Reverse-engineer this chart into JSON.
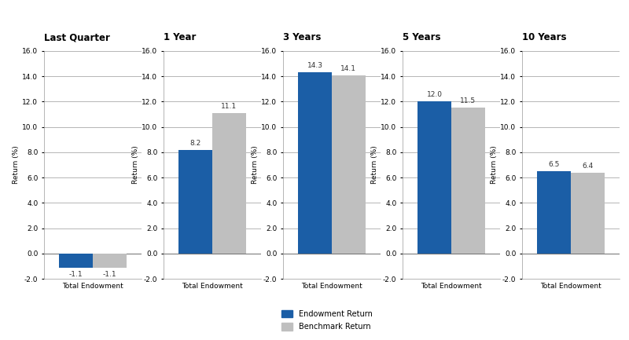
{
  "periods": [
    "Last Quarter",
    "1 Year",
    "3 Years",
    "5 Years",
    "10 Years"
  ],
  "endowment_returns": [
    -1.1,
    8.2,
    14.3,
    12.0,
    6.5
  ],
  "benchmark_returns": [
    -1.1,
    11.1,
    14.1,
    11.5,
    6.4
  ],
  "endowment_color": "#1B5EA6",
  "benchmark_color": "#BFBFBF",
  "bar_width": 0.38,
  "ylim": [
    -2.0,
    16.0
  ],
  "yticks": [
    0.0,
    2.0,
    4.0,
    6.0,
    8.0,
    10.0,
    12.0,
    14.0,
    16.0
  ],
  "ytick_labels": [
    "0.0",
    "2.0",
    "4.0",
    "6.0",
    "8.0",
    "10.0",
    "12.0",
    "14.0",
    "16.0"
  ],
  "ylabel": "Return (%)",
  "xlabel_label": "Total Endowment",
  "legend_endowment": "Endowment Return",
  "legend_benchmark": "Benchmark Return",
  "background_color": "#FFFFFF",
  "grid_color": "#999999",
  "title_fontsize": 8.5,
  "label_fontsize": 6.5,
  "tick_fontsize": 6.5,
  "bar_label_fontsize": 6.5,
  "ylabel_fontsize": 6.5,
  "neg2_tick": -2.0,
  "neg2_label": "-2.0"
}
